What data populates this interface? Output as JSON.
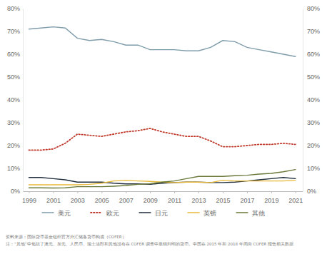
{
  "chart_data": {
    "type": "line",
    "x": [
      1999,
      2000,
      2001,
      2002,
      2003,
      2004,
      2005,
      2006,
      2007,
      2008,
      2009,
      2010,
      2011,
      2012,
      2013,
      2014,
      2015,
      2016,
      2017,
      2018,
      2019,
      2020,
      2021
    ],
    "xlim": [
      1998.5,
      2021.6
    ],
    "xticks": [
      1999,
      2001,
      2003,
      2005,
      2007,
      2009,
      2011,
      2013,
      2015,
      2017,
      2019,
      2021
    ],
    "ylim": [
      0,
      80
    ],
    "yticks": [
      {
        "value": 0,
        "label": "0%"
      },
      {
        "value": 10,
        "label": "10%"
      },
      {
        "value": 20,
        "label": "20%"
      },
      {
        "value": 30,
        "label": "30%"
      },
      {
        "value": 40,
        "label": "40%"
      },
      {
        "value": 50,
        "label": "50%"
      },
      {
        "value": 60,
        "label": "60%"
      },
      {
        "value": 70,
        "label": "70%"
      },
      {
        "value": 80,
        "label": "80%"
      }
    ],
    "y2lim": [
      0,
      80
    ],
    "y2ticks": [
      {
        "value": 0,
        "label": "0%"
      },
      {
        "value": 10,
        "label": "10%"
      },
      {
        "value": 20,
        "label": "20%"
      },
      {
        "value": 30,
        "label": "30%"
      },
      {
        "value": 40,
        "label": "40%"
      },
      {
        "value": 50,
        "label": "50%"
      },
      {
        "value": 60,
        "label": "60%"
      },
      {
        "value": 70,
        "label": "70%"
      },
      {
        "value": 80,
        "label": "80%"
      }
    ],
    "grid": false,
    "legend": "bottom",
    "series": [
      {
        "name": "美元",
        "color": "#7f9cab",
        "line_style": "solid",
        "values": [
          71,
          71.5,
          72,
          71.5,
          67,
          66,
          66.5,
          65.5,
          64,
          64,
          62,
          62,
          62,
          61.5,
          61.5,
          63,
          66,
          65.5,
          63,
          62,
          61,
          60,
          59
        ]
      },
      {
        "name": "欧元",
        "color": "#c0392b",
        "line_style": "dotted",
        "values": [
          18,
          18,
          18.5,
          21,
          25,
          24.5,
          24,
          25,
          26,
          26.5,
          27.5,
          26,
          25,
          24,
          24,
          22,
          19.5,
          19.5,
          20,
          20.5,
          20.5,
          21,
          20.5
        ]
      },
      {
        "name": "日元",
        "color": "#1f2d3d",
        "line_style": "solid",
        "values": [
          6,
          6,
          5.5,
          5,
          4,
          4,
          4,
          3.5,
          3.2,
          3.2,
          3,
          3.5,
          3.8,
          4,
          4,
          3.8,
          3.8,
          4,
          4.5,
          5,
          5.5,
          6,
          5.5
        ]
      },
      {
        "name": "英镑",
        "color": "#e8b93a",
        "line_style": "solid",
        "values": [
          2.8,
          2.8,
          2.8,
          2.8,
          2.8,
          3,
          3.5,
          4.5,
          4.8,
          4.5,
          4.3,
          4,
          3.8,
          4,
          4,
          3.8,
          4.8,
          4.5,
          4.5,
          4.5,
          4.5,
          4.5,
          4.8
        ]
      },
      {
        "name": "其他",
        "color": "#6b7a3a",
        "line_style": "solid",
        "values": [
          1.5,
          1.5,
          1.4,
          1.5,
          2,
          2,
          2,
          2.2,
          2.5,
          3,
          3.3,
          4,
          4.5,
          5.5,
          6.5,
          6.5,
          6.5,
          6.8,
          7,
          7.5,
          7.8,
          8.5,
          9.5
        ]
      }
    ],
    "annotations": [
      "资料来源：国际货币基金组织官方外汇储备货币构成（COFER）",
      "注：“其他”中包括了澳元、加元、人民币、瑞士法郎和其他没有在 COFER 调查中单独列明的货币。中国在 2015 年和 2018 年间向 COFER 报告相关数据"
    ]
  }
}
